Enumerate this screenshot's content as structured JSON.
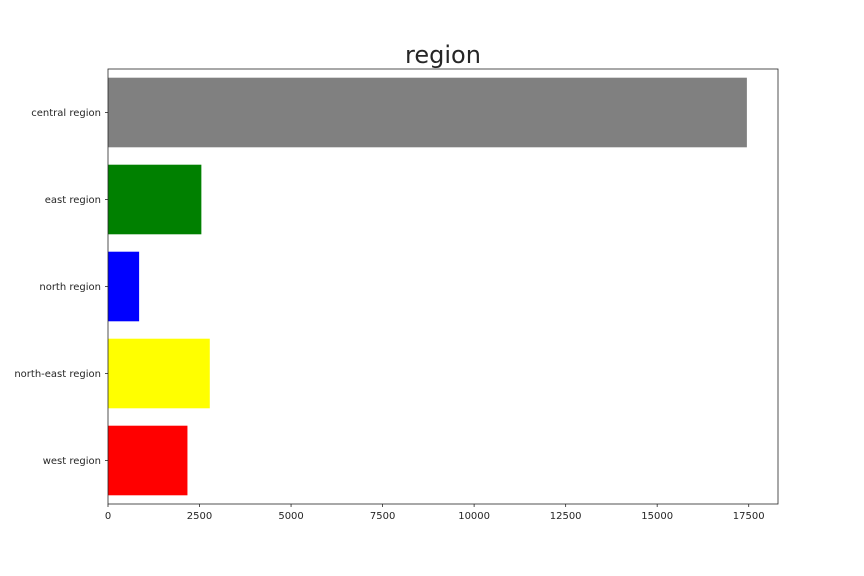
{
  "chart_data": {
    "type": "bar",
    "orientation": "horizontal",
    "title": "region",
    "xlabel": "",
    "ylabel": "",
    "categories": [
      "central region",
      "east region",
      "north region",
      "north-east region",
      "west region"
    ],
    "values": [
      17450,
      2550,
      850,
      2780,
      2170
    ],
    "colors": [
      "#808080",
      "#008000",
      "#0000ff",
      "#ffff00",
      "#ff0000"
    ],
    "xlim": [
      0,
      18300
    ],
    "xticks": [
      0,
      2500,
      5000,
      7500,
      10000,
      12500,
      15000,
      17500
    ],
    "xtick_labels": [
      "0",
      "2500",
      "5000",
      "7500",
      "10000",
      "12500",
      "15000",
      "17500"
    ],
    "grid": false,
    "legend": "none"
  }
}
